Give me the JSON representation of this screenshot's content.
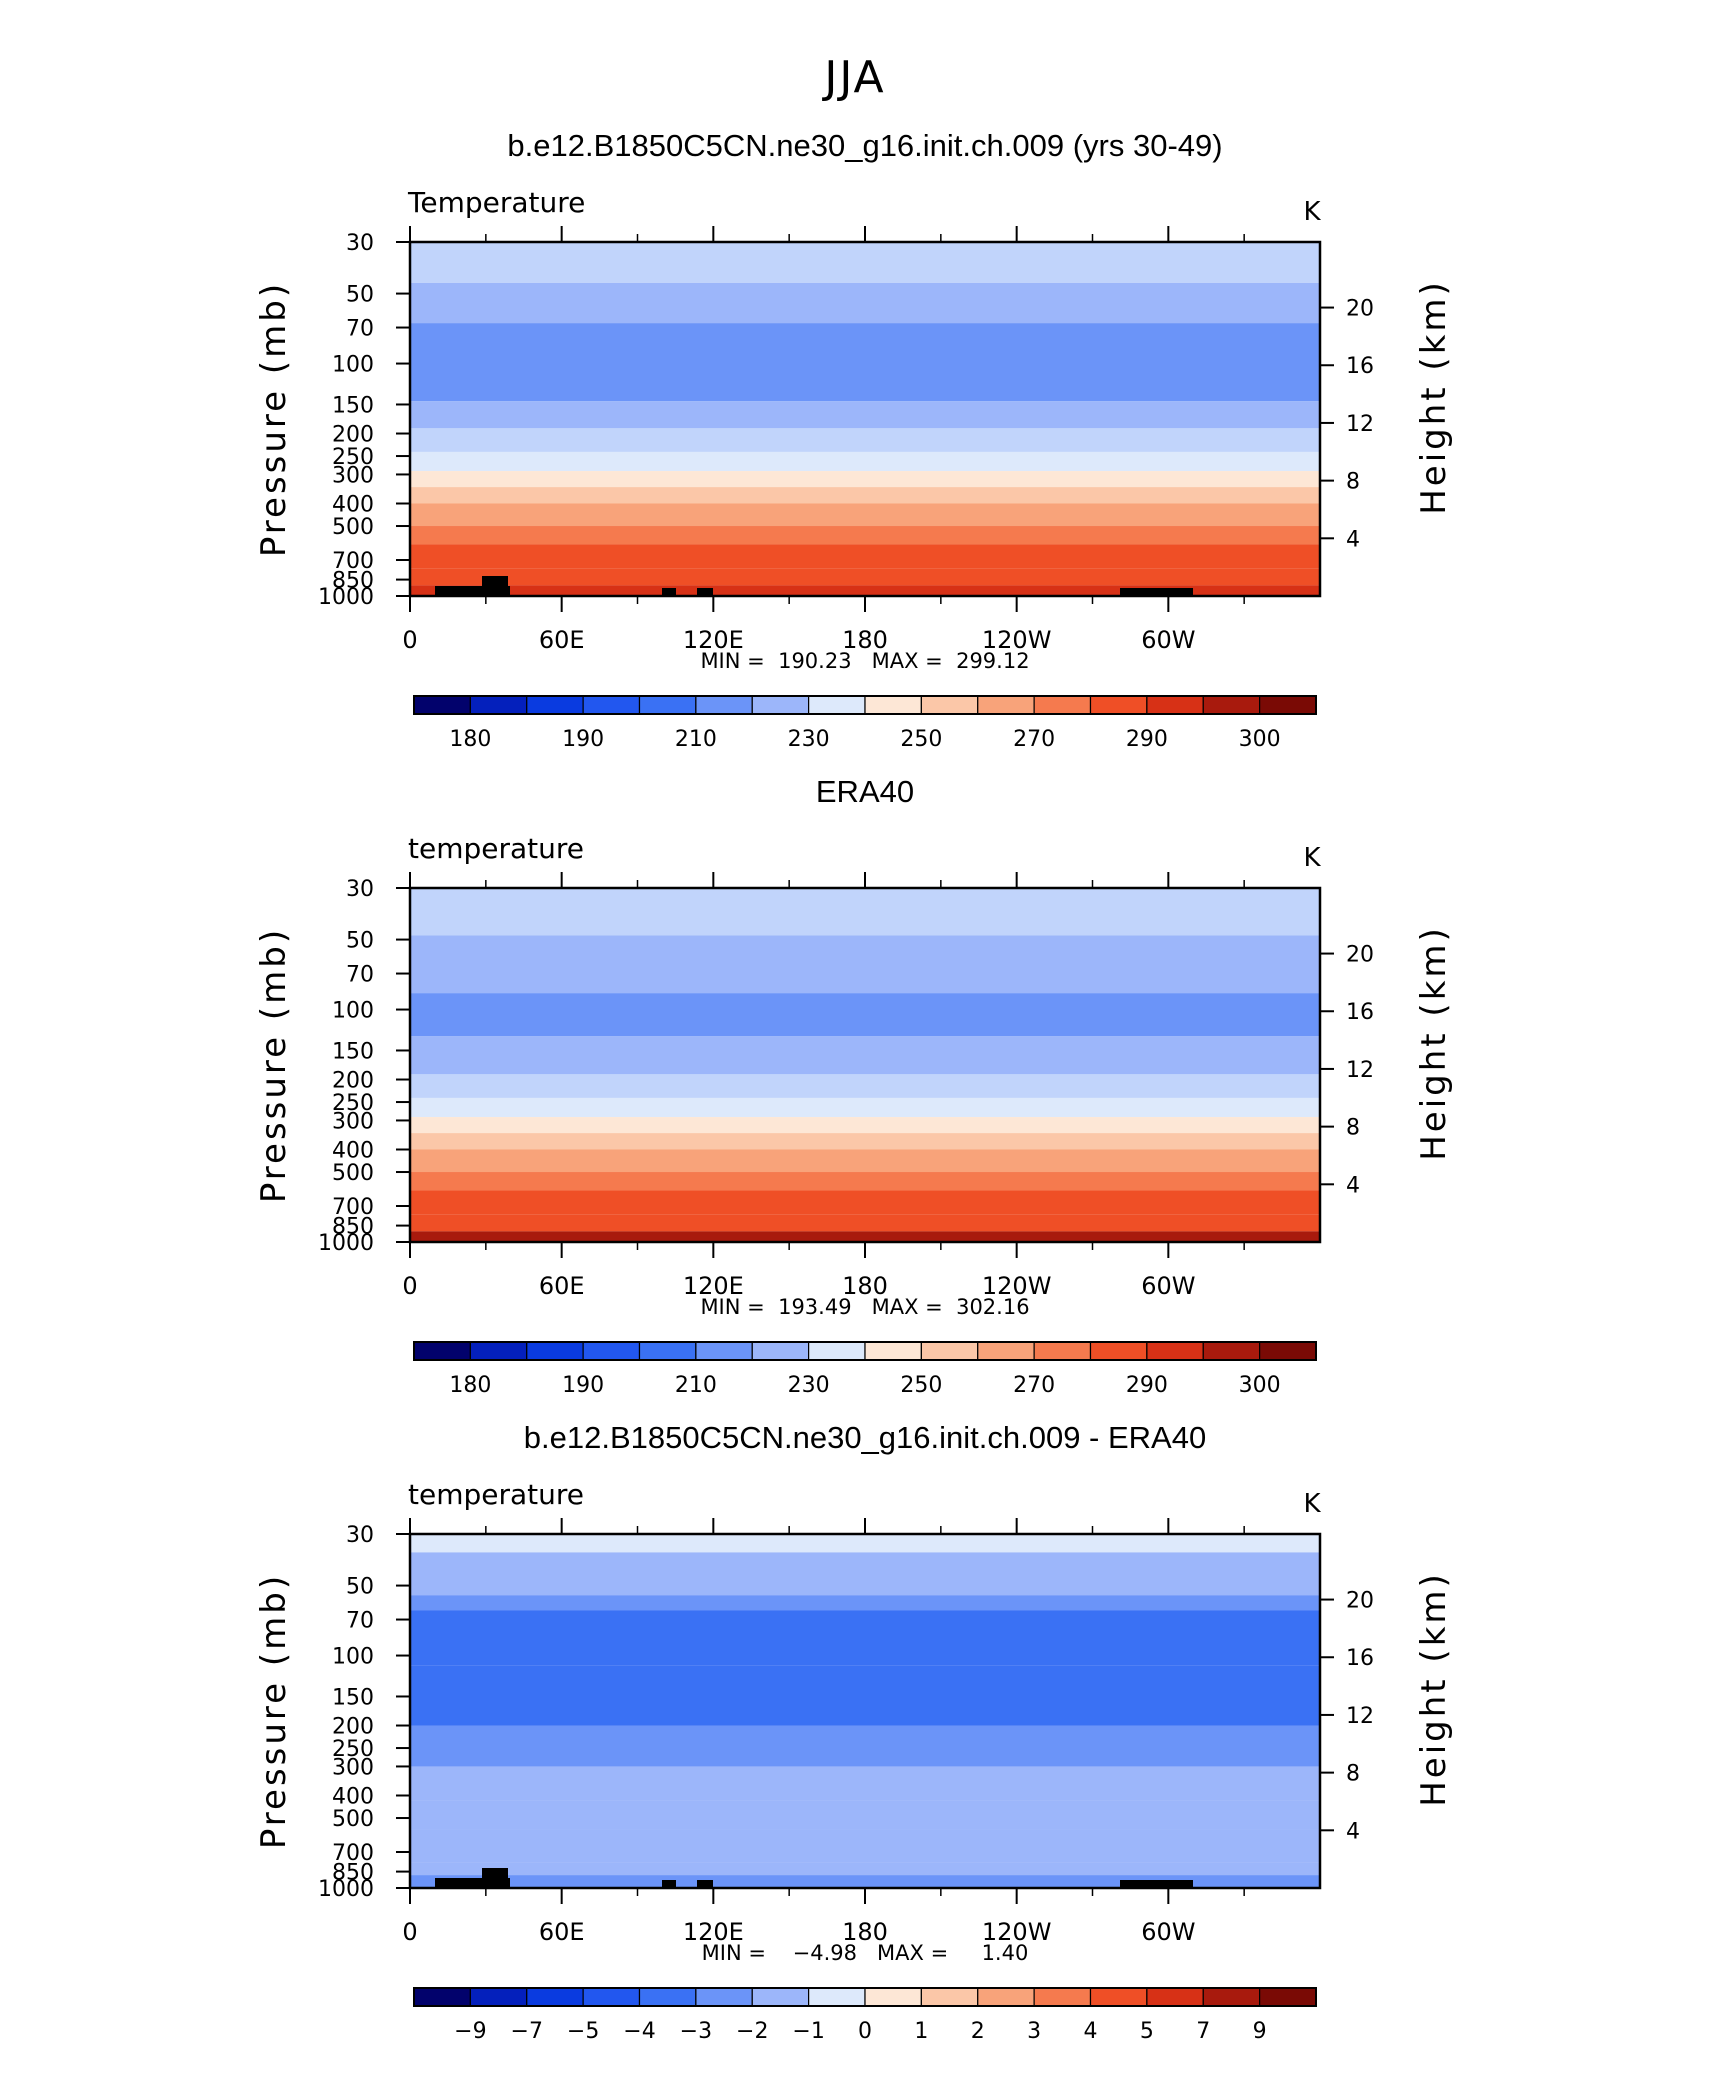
{
  "figure": {
    "title": "JJA"
  },
  "chart_data": [
    {
      "type": "heatmap",
      "title": "b.e12.B1850C5CN.ne30_g16.init.ch.009 (yrs 30-49)",
      "left_label": "Temperature",
      "units": "K",
      "ylabel": "Pressure (mb)",
      "ylabel_right": "Height (km)",
      "x_ticks": [
        "0",
        "60E",
        "120E",
        "180",
        "120W",
        "60W"
      ],
      "y_ticks": [
        "30",
        "50",
        "70",
        "100",
        "150",
        "200",
        "250",
        "300",
        "400",
        "500",
        "700",
        "850",
        "1000"
      ],
      "y_ticks_right": [
        "20",
        "16",
        "12",
        "8",
        "4"
      ],
      "y_scale": "log",
      "stats": "MIN =  190.23   MAX =  299.12",
      "min": 190.23,
      "max": 299.12,
      "colorbar_labels": [
        "180",
        "190",
        "210",
        "230",
        "250",
        "270",
        "290",
        "300"
      ],
      "layers_by_pressure": [
        {
          "p_top": 30,
          "p_bottom": 45,
          "value": 220
        },
        {
          "p_top": 45,
          "p_bottom": 67,
          "value": 215
        },
        {
          "p_top": 67,
          "p_bottom": 145,
          "value": 205
        },
        {
          "p_top": 145,
          "p_bottom": 190,
          "value": 215
        },
        {
          "p_top": 190,
          "p_bottom": 240,
          "value": 220
        },
        {
          "p_top": 240,
          "p_bottom": 290,
          "value": 230
        },
        {
          "p_top": 290,
          "p_bottom": 340,
          "value": 240
        },
        {
          "p_top": 340,
          "p_bottom": 400,
          "value": 250
        },
        {
          "p_top": 400,
          "p_bottom": 500,
          "value": 260
        },
        {
          "p_top": 500,
          "p_bottom": 600,
          "value": 270
        },
        {
          "p_top": 600,
          "p_bottom": 760,
          "value": 280
        },
        {
          "p_top": 760,
          "p_bottom": 900,
          "value": 287
        },
        {
          "p_top": 900,
          "p_bottom": 1000,
          "value": 293
        }
      ]
    },
    {
      "type": "heatmap",
      "title": "ERA40",
      "left_label": "temperature",
      "units": "K",
      "ylabel": "Pressure (mb)",
      "ylabel_right": "Height (km)",
      "x_ticks": [
        "0",
        "60E",
        "120E",
        "180",
        "120W",
        "60W"
      ],
      "y_ticks": [
        "30",
        "50",
        "70",
        "100",
        "150",
        "200",
        "250",
        "300",
        "400",
        "500",
        "700",
        "850",
        "1000"
      ],
      "y_ticks_right": [
        "20",
        "16",
        "12",
        "8",
        "4"
      ],
      "y_scale": "log",
      "stats": "MIN =  193.49   MAX =  302.16",
      "min": 193.49,
      "max": 302.16,
      "colorbar_labels": [
        "180",
        "190",
        "210",
        "230",
        "250",
        "270",
        "290",
        "300"
      ],
      "layers_by_pressure": [
        {
          "p_top": 30,
          "p_bottom": 48,
          "value": 220
        },
        {
          "p_top": 48,
          "p_bottom": 85,
          "value": 212
        },
        {
          "p_top": 85,
          "p_bottom": 130,
          "value": 205
        },
        {
          "p_top": 130,
          "p_bottom": 190,
          "value": 212
        },
        {
          "p_top": 190,
          "p_bottom": 240,
          "value": 220
        },
        {
          "p_top": 240,
          "p_bottom": 290,
          "value": 230
        },
        {
          "p_top": 290,
          "p_bottom": 340,
          "value": 240
        },
        {
          "p_top": 340,
          "p_bottom": 400,
          "value": 250
        },
        {
          "p_top": 400,
          "p_bottom": 500,
          "value": 260
        },
        {
          "p_top": 500,
          "p_bottom": 600,
          "value": 270
        },
        {
          "p_top": 600,
          "p_bottom": 760,
          "value": 280
        },
        {
          "p_top": 760,
          "p_bottom": 900,
          "value": 287
        },
        {
          "p_top": 900,
          "p_bottom": 1000,
          "value": 295
        }
      ]
    },
    {
      "type": "heatmap",
      "title": "b.e12.B1850C5CN.ne30_g16.init.ch.009 - ERA40",
      "left_label": "temperature",
      "units": "K",
      "ylabel": "Pressure (mb)",
      "ylabel_right": "Height (km)",
      "x_ticks": [
        "0",
        "60E",
        "120E",
        "180",
        "120W",
        "60W"
      ],
      "y_ticks": [
        "30",
        "50",
        "70",
        "100",
        "150",
        "200",
        "250",
        "300",
        "400",
        "500",
        "700",
        "850",
        "1000"
      ],
      "y_ticks_right": [
        "20",
        "16",
        "12",
        "8",
        "4"
      ],
      "y_scale": "log",
      "stats": "MIN =    −4.98   MAX =     1.40",
      "min": -4.98,
      "max": 1.4,
      "colorbar_labels": [
        "−9",
        "−7",
        "−5",
        "−4",
        "−3",
        "−2",
        "−1",
        "0",
        "1",
        "2",
        "3",
        "4",
        "5",
        "7",
        "9"
      ],
      "layers_by_pressure": [
        {
          "p_top": 30,
          "p_bottom": 36,
          "value": -0.5
        },
        {
          "p_top": 36,
          "p_bottom": 55,
          "value": -1.5
        },
        {
          "p_top": 55,
          "p_bottom": 64,
          "value": -2.5
        },
        {
          "p_top": 64,
          "p_bottom": 110,
          "value": -3.5
        },
        {
          "p_top": 110,
          "p_bottom": 200,
          "value": -3.2
        },
        {
          "p_top": 200,
          "p_bottom": 300,
          "value": -2.5
        },
        {
          "p_top": 300,
          "p_bottom": 420,
          "value": -1.5
        },
        {
          "p_top": 420,
          "p_bottom": 560,
          "value": -1.3
        },
        {
          "p_top": 560,
          "p_bottom": 780,
          "value": -1.6
        },
        {
          "p_top": 780,
          "p_bottom": 880,
          "value": -1.5
        },
        {
          "p_top": 880,
          "p_bottom": 1000,
          "value": -2.3
        }
      ]
    }
  ]
}
